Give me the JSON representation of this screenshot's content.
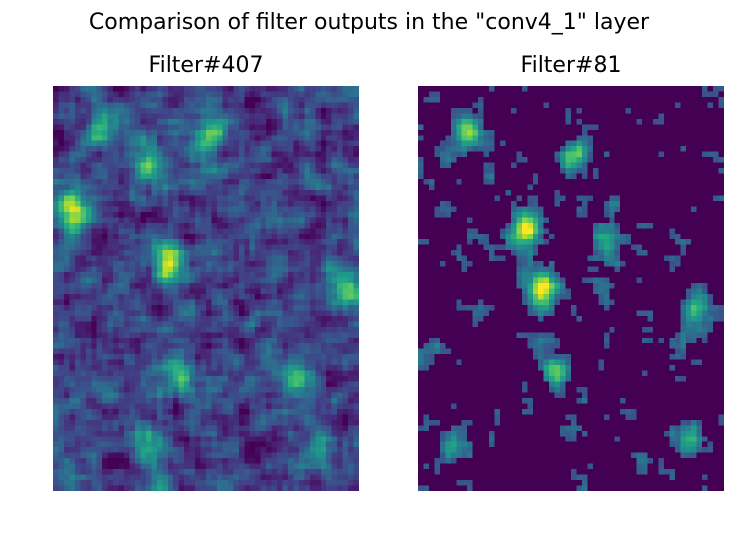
{
  "chart_data": {
    "type": "heatmap",
    "title": "Comparison of filter outputs in the \"conv4_1\" layer",
    "colormap": "viridis",
    "panels": [
      {
        "title": "Filter#407",
        "grid": {
          "cols": 56,
          "rows": 74
        },
        "description": "dense activation clusters across whole map, brightest blob near upper-center and left edge",
        "hotspots": [
          {
            "x": 0.37,
            "y": 0.43,
            "strength": 1.0
          },
          {
            "x": 0.06,
            "y": 0.3,
            "strength": 0.85
          },
          {
            "x": 0.5,
            "y": 0.12,
            "strength": 0.7
          },
          {
            "x": 0.15,
            "y": 0.09,
            "strength": 0.6
          },
          {
            "x": 0.3,
            "y": 0.18,
            "strength": 0.65
          },
          {
            "x": 0.95,
            "y": 0.49,
            "strength": 0.7
          },
          {
            "x": 0.4,
            "y": 0.7,
            "strength": 0.6
          },
          {
            "x": 0.78,
            "y": 0.72,
            "strength": 0.6
          },
          {
            "x": 0.3,
            "y": 0.88,
            "strength": 0.55
          },
          {
            "x": 0.85,
            "y": 0.88,
            "strength": 0.5
          }
        ],
        "background_level": 0.22
      },
      {
        "title": "Filter#81",
        "grid": {
          "cols": 56,
          "rows": 74
        },
        "description": "sparser activations, strongest cluster upper-center, bright single cell near mid-left",
        "hotspots": [
          {
            "x": 0.34,
            "y": 0.34,
            "strength": 1.0
          },
          {
            "x": 0.4,
            "y": 0.49,
            "strength": 1.0
          },
          {
            "x": 0.15,
            "y": 0.11,
            "strength": 0.85
          },
          {
            "x": 0.5,
            "y": 0.17,
            "strength": 0.7
          },
          {
            "x": 0.6,
            "y": 0.38,
            "strength": 0.6
          },
          {
            "x": 0.45,
            "y": 0.7,
            "strength": 0.65
          },
          {
            "x": 0.9,
            "y": 0.55,
            "strength": 0.55
          },
          {
            "x": 0.88,
            "y": 0.87,
            "strength": 0.5
          },
          {
            "x": 0.1,
            "y": 0.88,
            "strength": 0.45
          }
        ],
        "background_level": 0.0
      }
    ]
  }
}
